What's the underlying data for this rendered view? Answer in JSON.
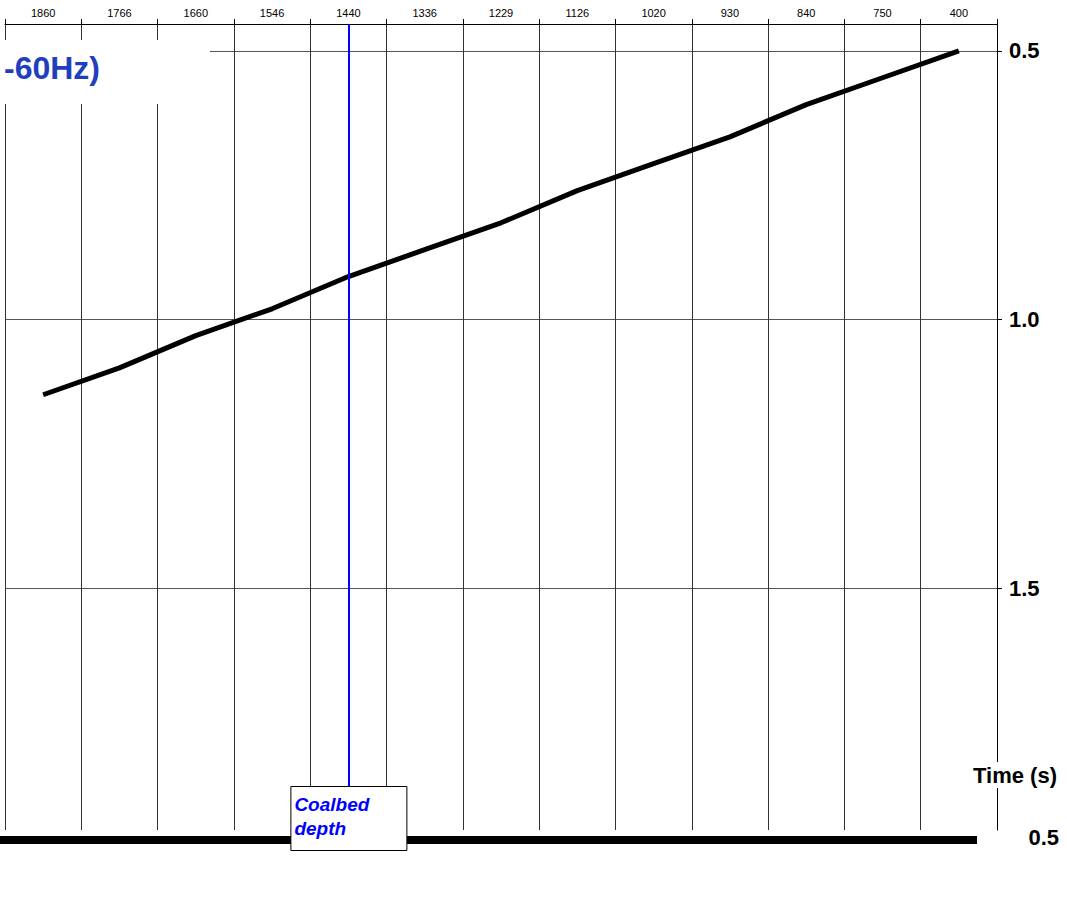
{
  "chart_data": {
    "type": "line",
    "title": "-60Hz)",
    "categories": [
      "1860",
      "1766",
      "1660",
      "1546",
      "1440",
      "1336",
      "1229",
      "1126",
      "1020",
      "930",
      "840",
      "750",
      "400"
    ],
    "values": [
      1.14,
      1.09,
      1.03,
      0.98,
      0.92,
      0.87,
      0.82,
      0.76,
      0.71,
      0.66,
      0.6,
      0.55,
      0.5
    ],
    "color": "#000000",
    "ylim": [
      0.45,
      1.95
    ],
    "yticks": [
      0.5,
      {
        "value": 1,
        "label": "1.0"
      },
      1.5
    ],
    "y_label": "Time (s)",
    "grid": true,
    "marker_line": {
      "category": "1440",
      "label": "Coalbed depth",
      "color": "#0000ff"
    },
    "bottom_marker": {
      "label": "0.5"
    }
  }
}
